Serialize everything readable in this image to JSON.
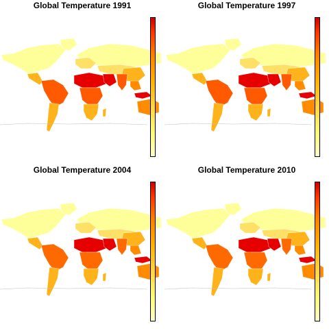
{
  "panels": [
    {
      "title": "Global Temperature 1991",
      "hot_band": "#e60000",
      "mid_band": "#ff5a00"
    },
    {
      "title": "Global Temperature 1997",
      "hot_band": "#e60000",
      "mid_band": "#ff5a00"
    },
    {
      "title": "Global Temperature 2004",
      "hot_band": "#e60000",
      "mid_band": "#ff6a00"
    },
    {
      "title": "Global Temperature 2010",
      "hot_band": "#e60000",
      "mid_band": "#ff6a00"
    }
  ],
  "colors": {
    "coldest": "#ffff99",
    "cool": "#ffe066",
    "warm": "#ffb31a",
    "hotter": "#ff8c00",
    "outline": "#bfbfbf",
    "colorbar_top": "#cc0000",
    "colorbar_bottom": "#ffffcc"
  },
  "colorbar_scale": "heat-colors"
}
